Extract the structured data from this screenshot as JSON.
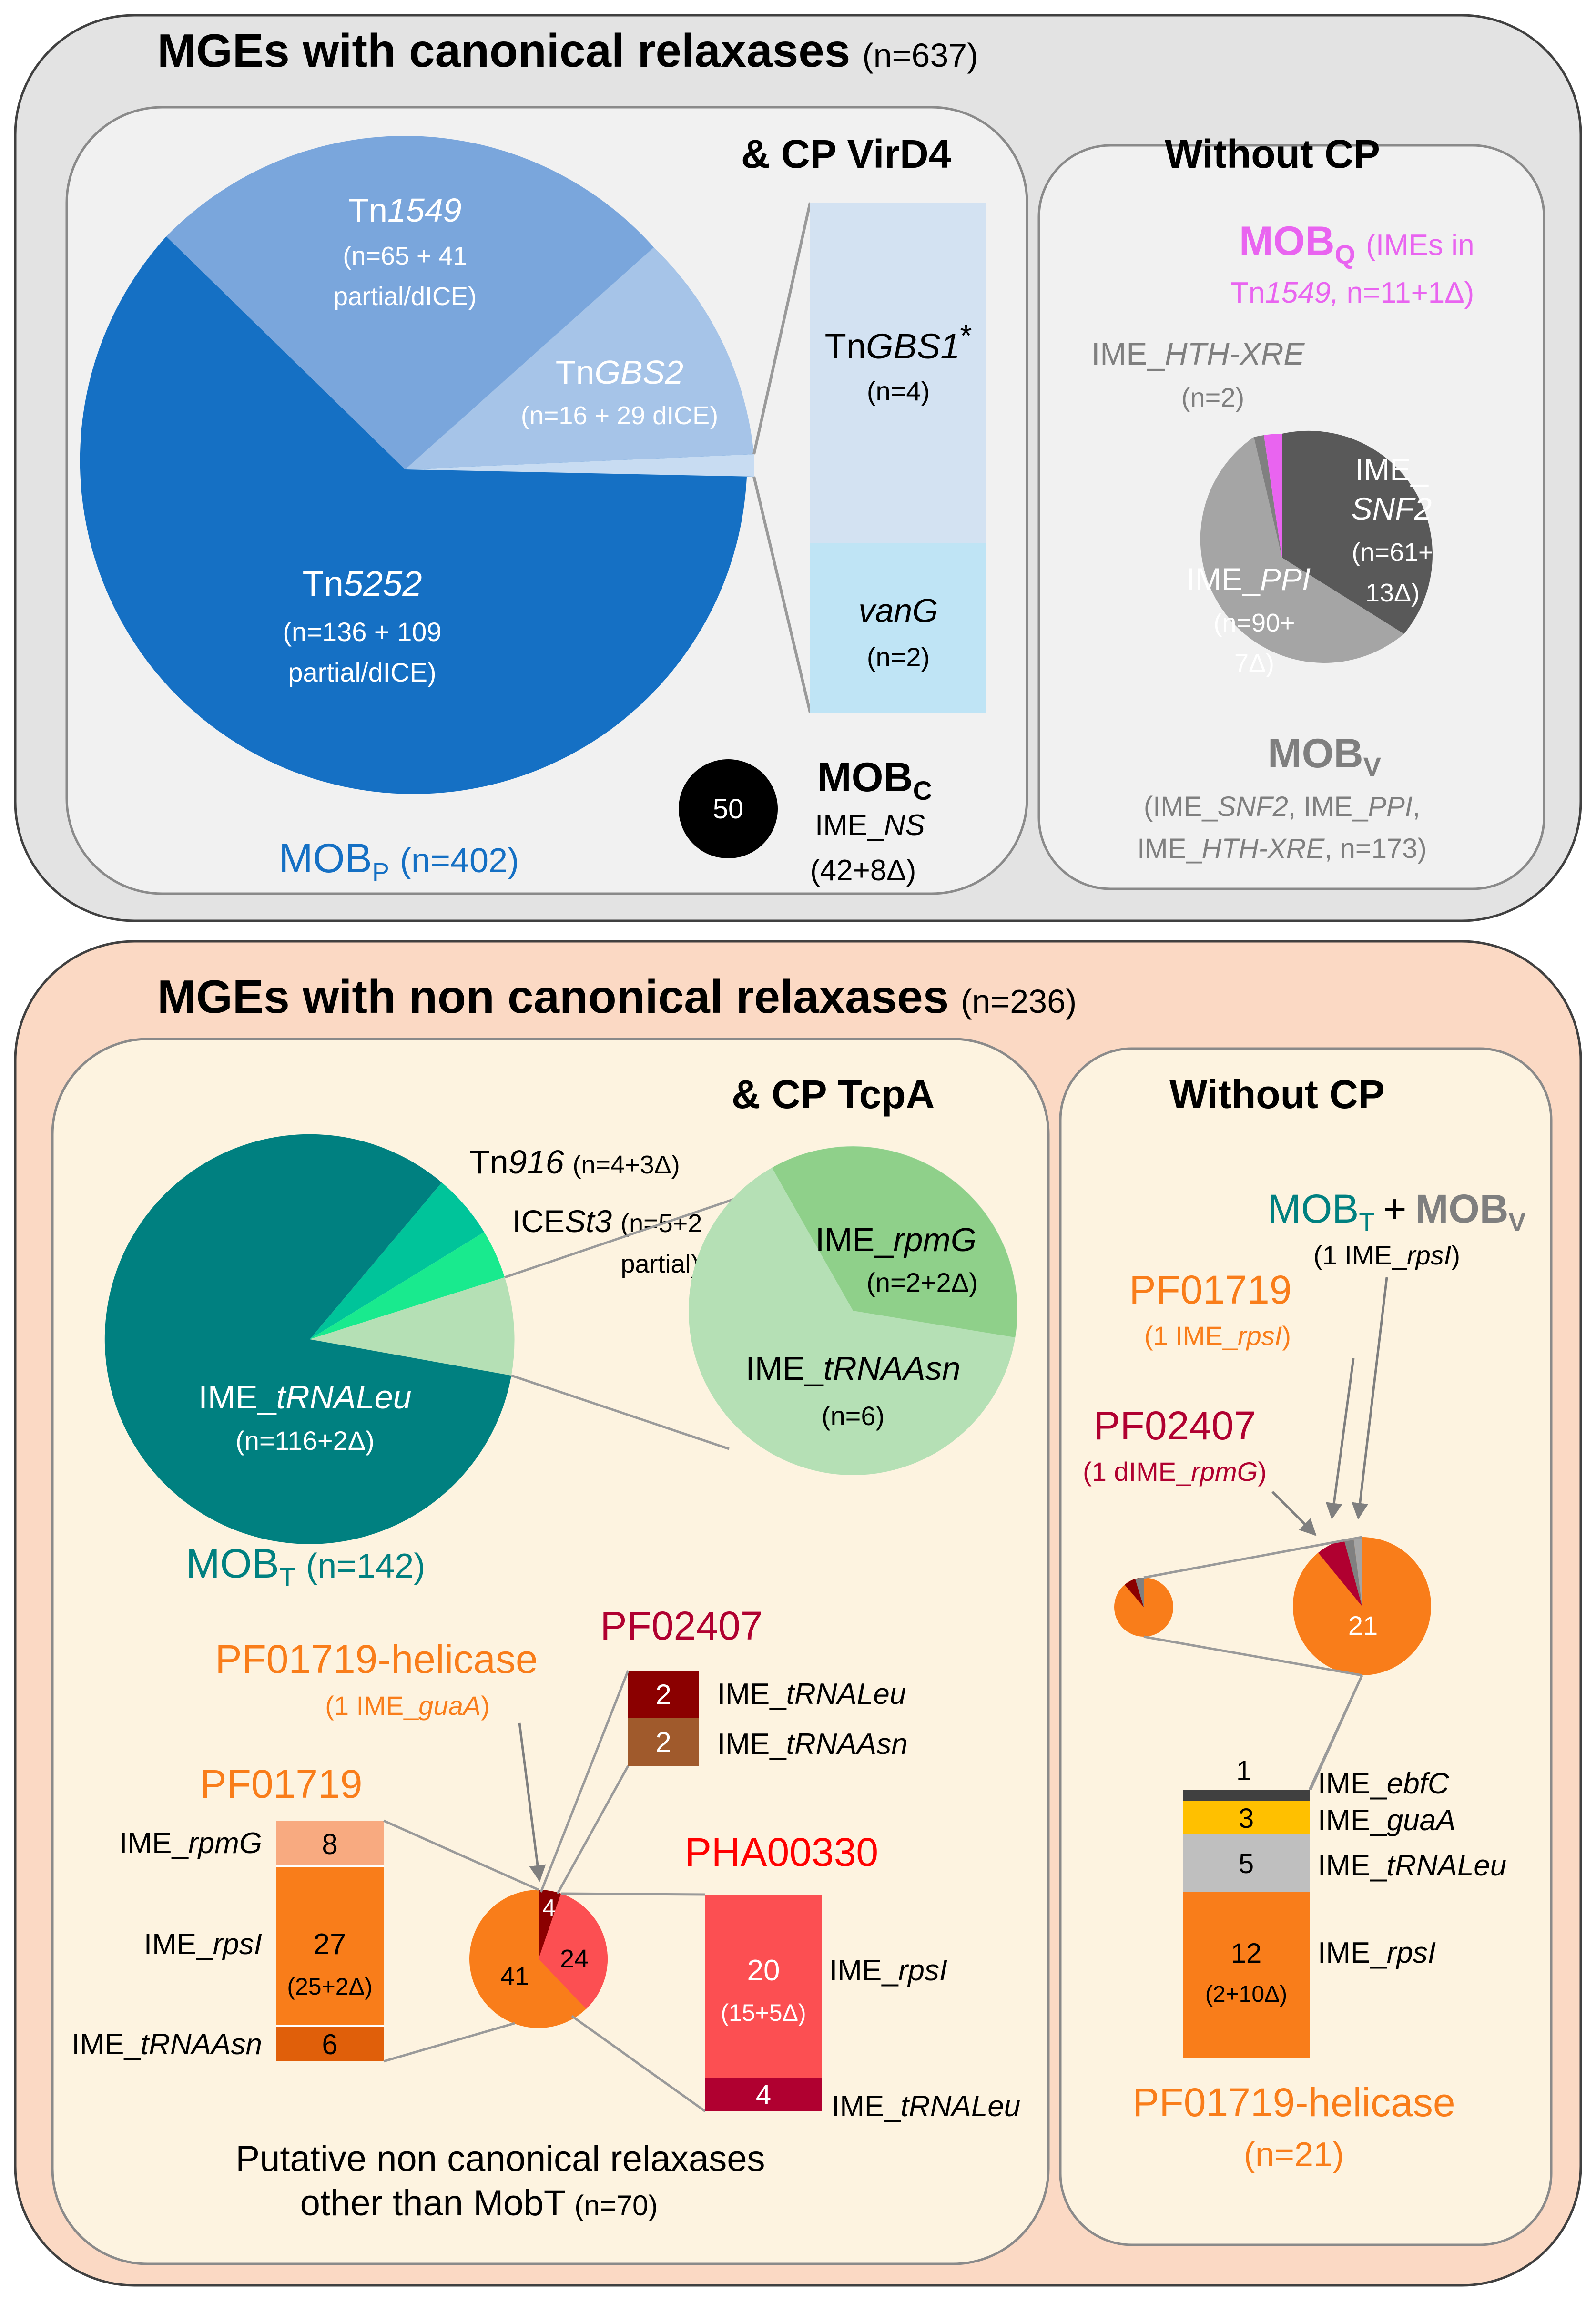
{
  "colors": {
    "top_panel": "#e3e3e3",
    "inner_top": "#f1f1f1",
    "bottom_panel": "#fbd9c4",
    "inner_bottom": "#fdf3e0",
    "mobp_dark": "#1570c4",
    "mobp_mid": "#7aa6dc",
    "mobp_light": "#a6c4e8",
    "mobp_pale": "#c8dcf2",
    "mobq": "#e964f0",
    "mobv_dark": "#595959",
    "mobv_mid": "#a5a5a5",
    "mobt_dark": "#008080",
    "mobt_mid": "#00c49a",
    "mobt_bright": "#19ea8e",
    "mobt_pale": "#b5e0b5",
    "mobt_green": "#8fd08a",
    "orange": "#f97d1a",
    "orange_light": "#f8aa80",
    "orange_dark": "#e05f0a",
    "dark_red": "#8b0000",
    "brown": "#a05a2c",
    "red": "#fc4f52",
    "crimson": "#b00030",
    "yellow": "#ffc000",
    "grey": "#bfbfbf",
    "black_bar": "#404040"
  },
  "top": {
    "title": "MGEs with canonical relaxases",
    "count": "(n=637)",
    "virD4": {
      "title": "& CP VirD4",
      "tn1549": {
        "prefix": "Tn",
        "italic": "1549",
        "line2": "(n=65 + 41",
        "line3": "partial/dICE)"
      },
      "tngbs2": {
        "prefix": "Tn",
        "italic": "GBS2",
        "line2": "(n=16 + 29 dICE)"
      },
      "tn5252": {
        "prefix": "Tn",
        "italic": "5252",
        "line2": "(n=136 + 109",
        "line3": "partial/dICE)"
      },
      "mobp_label": "MOB",
      "mobp_sub": "P",
      "mobp_count": "(n=402)",
      "tngbs1": {
        "prefix": "Tn",
        "italic": "GBS1",
        "suffix": "*",
        "count": "(n=4)"
      },
      "vang": {
        "italic": "vanG",
        "count": "(n=2)"
      },
      "mobc_circle_value": "50",
      "mobc_label": "MOB",
      "mobc_sub": "C",
      "mobc_ime": "IME_",
      "mobc_ime_italic": "NS",
      "mobc_count": "(42+8Δ)"
    },
    "without_cp": {
      "title": "Without CP",
      "mobq_label": "MOB",
      "mobq_sub": "Q",
      "mobq_desc1": "(IMEs in",
      "mobq_desc2a": "Tn",
      "mobq_desc2b": "1549,",
      "mobq_desc2c": "n=11+1Δ)",
      "hth_prefix": "IME_",
      "hth_italic": "HTH-XRE",
      "hth_count": "(n=2)",
      "snf2_l1": "IME_",
      "snf2_l2": "SNF2",
      "snf2_l3": "(n=61+",
      "snf2_l4": "13Δ)",
      "ppi_l1a": "IME_",
      "ppi_l1b": "PPI",
      "ppi_l2": "(n=90+",
      "ppi_l3": "7Δ)",
      "mobv_label": "MOB",
      "mobv_sub": "V",
      "mobv_d1a": "(IME_",
      "mobv_d1b": "SNF2",
      "mobv_d1c": ", IME_",
      "mobv_d1d": "PPI",
      "mobv_d1e": ",",
      "mobv_d2a": "IME_",
      "mobv_d2b": "HTH-XRE",
      "mobv_d2c": ", n=173)"
    }
  },
  "bottom": {
    "title": "MGEs with non canonical relaxases",
    "count": "(n=236)",
    "tcpa": {
      "title": "& CP TcpA",
      "tn916_a": "Tn",
      "tn916_b": "916",
      "tn916_c": "(n=4+3Δ)",
      "icest3_a": "ICE",
      "icest3_b": "St3",
      "icest3_c": "(n=5+2",
      "icest3_d": "partial)",
      "trnaleu_a": "IME_",
      "trnaleu_b": "tRNALeu",
      "trnaleu_count": "(n=116+2Δ)",
      "rpmg_a": "IME_",
      "rpmg_b": "rpmG",
      "rpmg_count": "(n=2+2Δ)",
      "trnaasn_a": "IME_",
      "trnaasn_b": "tRNAAsn",
      "trnaasn_count": "(n=6)",
      "mobt_label": "MOB",
      "mobt_sub": "T",
      "mobt_count": "(n=142)",
      "helicase_title": "PF01719-helicase",
      "helicase_sub_a": "(1 IME_",
      "helicase_sub_b": "guaA",
      "helicase_sub_c": ")",
      "pf02407_title": "PF02407",
      "pf02407_bars": [
        {
          "value": "2",
          "label_a": "IME_",
          "label_b": "tRNALeu"
        },
        {
          "value": "2",
          "label_a": "IME_",
          "label_b": "tRNAAsn"
        }
      ],
      "pf01719_title": "PF01719",
      "pf01719_bars": [
        {
          "value": "8",
          "label_a": "IME_",
          "label_b": "rpmG"
        },
        {
          "value": "27",
          "sub": "(25+2Δ)",
          "label_a": "IME_",
          "label_b": "rpsI"
        },
        {
          "value": "6",
          "label_a": "IME_",
          "label_b": "tRNAAsn"
        }
      ],
      "pie_values": [
        "4",
        "24",
        "41"
      ],
      "pha_title": "PHA00330",
      "pha_bars": [
        {
          "value": "20",
          "sub": "(15+5Δ)",
          "label_a": "IME_",
          "label_b": "rpsI"
        },
        {
          "value": "4",
          "label_a": "IME_",
          "label_b": "tRNALeu"
        }
      ],
      "footer_l1": "Putative non canonical relaxases",
      "footer_l2": "other than MobT",
      "footer_count": "(n=70)"
    },
    "without_cp": {
      "title": "Without CP",
      "mobt_label": "MOB",
      "mobt_sub": "T",
      "plus": "+",
      "mobv_label": "MOB",
      "mobv_sub": "V",
      "mobtv_sub_a": "(1 IME_",
      "mobtv_sub_b": "rpsI",
      "mobtv_sub_c": ")",
      "pf01719_title": "PF01719",
      "pf01719_sub_a": "(1 IME_",
      "pf01719_sub_b": "rpsI",
      "pf01719_sub_c": ")",
      "pf02407_title": "PF02407",
      "pf02407_sub_a": "(1 dIME_",
      "pf02407_sub_b": "rpmG",
      "pf02407_sub_c": ")",
      "pie_value": "21",
      "bars": [
        {
          "value": "1",
          "label_a": "IME_",
          "label_b": "ebfC"
        },
        {
          "value": "3",
          "label_a": "IME_",
          "label_b": "guaA"
        },
        {
          "value": "5",
          "label_a": "IME_",
          "label_b": "tRNALeu"
        },
        {
          "value": "12",
          "sub": "(2+10Δ)",
          "label_a": "IME_",
          "label_b": "rpsI"
        }
      ],
      "footer_title": "PF01719-helicase",
      "footer_count": "(n=21)"
    }
  }
}
